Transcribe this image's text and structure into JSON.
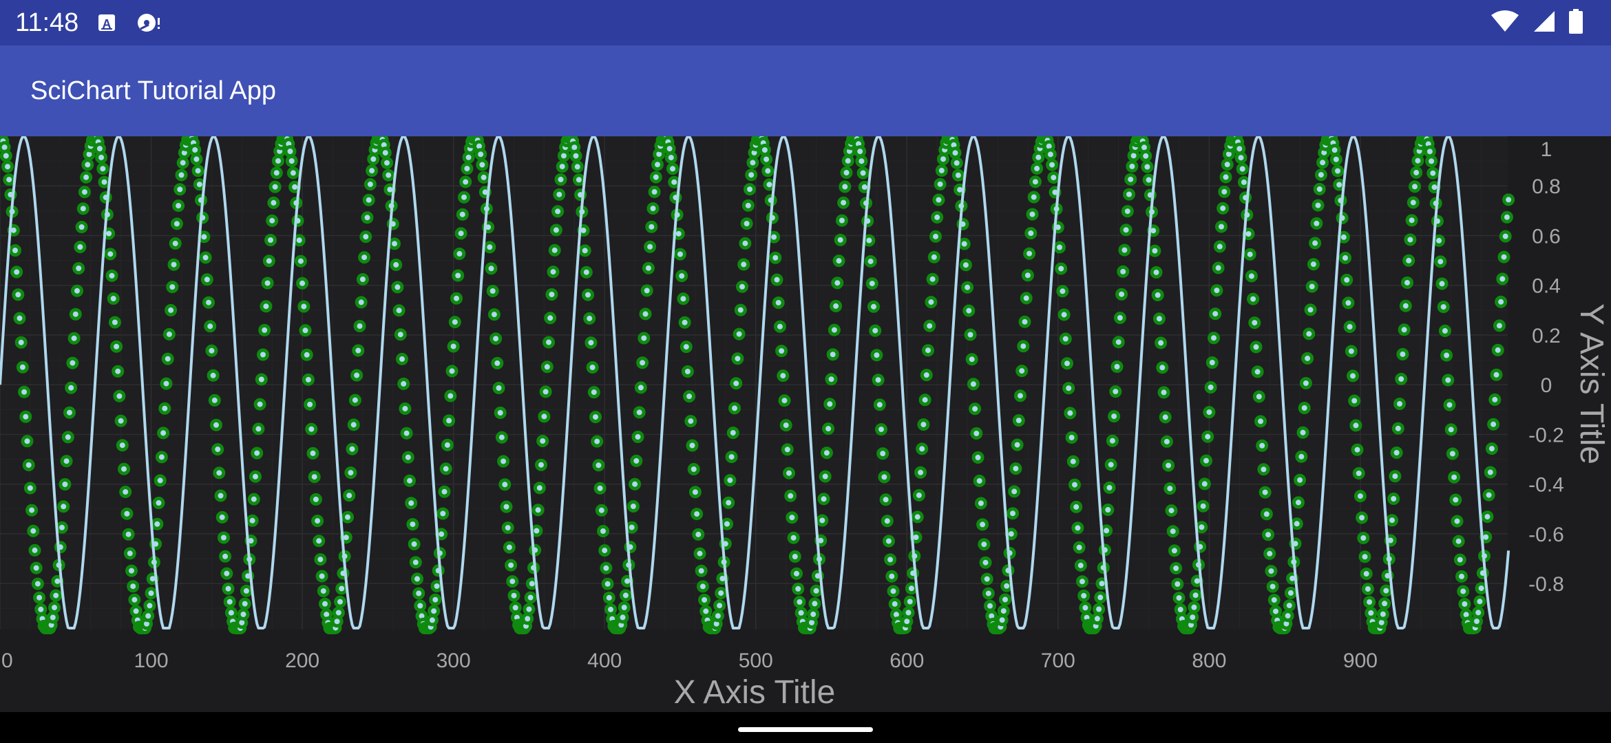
{
  "status_bar": {
    "time": "11:48",
    "notification_icons": [
      "text-a-icon",
      "disc-sync-icon"
    ],
    "system_icons": [
      "wifi-icon",
      "cellular-signal-icon",
      "battery-icon"
    ],
    "background_color": "#2F3E9E"
  },
  "app_bar": {
    "title": "SciChart Tutorial App",
    "background_color": "#3F51B5"
  },
  "chart_data": {
    "type": "line",
    "xlabel": "X Axis Title",
    "ylabel": "Y Axis Title",
    "xlim": [
      0,
      1000
    ],
    "ylim": [
      -1,
      1
    ],
    "x_ticks": [
      "0",
      "100",
      "200",
      "300",
      "400",
      "500",
      "600",
      "700",
      "800",
      "900"
    ],
    "y_ticks": [
      "1",
      "0.8",
      "0.6",
      "0.4",
      "0.2",
      "0",
      "-0.2",
      "-0.4",
      "-0.6",
      "-0.8"
    ],
    "y_axis_position": "right",
    "grid": true,
    "colors": {
      "background": "#1C1C1E",
      "line": "#B0D8EE",
      "scatter_fill": "#B0D8EE",
      "scatter_stroke": "#0F8A0F",
      "grid": "#2A2A2C",
      "tick_label": "#A8A8A8"
    },
    "series": [
      {
        "kind": "line",
        "formula": "y = sin(x * 0.1)",
        "x_range": [
          0,
          999
        ],
        "point_count": 1000
      },
      {
        "kind": "scatter",
        "formula": "y = cos(x * 0.1)",
        "x_range": [
          0,
          999
        ],
        "point_count": 1000
      }
    ]
  },
  "nav_bar": {
    "handle": "home-gesture-handle"
  }
}
